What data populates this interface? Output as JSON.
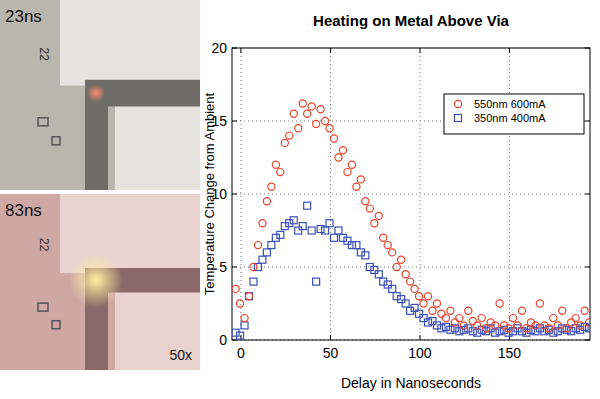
{
  "chart_data": {
    "type": "scatter",
    "title": "Heating on Metal Above Via",
    "x_label": "Delay in Nanoseconds",
    "y_label": "Temperature Change from Ambient",
    "x": [
      -3,
      -0.5,
      2,
      4.5,
      7,
      9.5,
      12,
      14.5,
      17,
      19.5,
      22,
      24.5,
      27,
      29.5,
      32,
      34.5,
      37,
      39.5,
      42,
      44.5,
      47,
      49.5,
      52,
      54.5,
      57,
      59.5,
      62,
      64.5,
      67,
      69.5,
      72,
      74.5,
      77,
      79.5,
      82,
      84.5,
      87,
      89.5,
      92,
      94.5,
      97,
      99.5,
      102,
      104.5,
      107,
      109.5,
      112,
      114.5,
      117,
      119.5,
      122,
      124.5,
      127,
      129.5,
      132,
      134.5,
      137,
      139.5,
      142,
      144.5,
      147,
      149.5,
      152,
      154.5,
      157,
      159.5,
      162,
      164.5,
      167,
      169.5,
      172,
      174.5,
      177,
      179.5,
      182,
      184.5,
      187,
      189.5,
      192,
      194.5
    ],
    "series": [
      {
        "name": "550nm 600mA",
        "color": "#e8442f",
        "marker": "circle",
        "values": [
          3.5,
          2.5,
          1.5,
          3,
          5,
          6.5,
          8,
          9.5,
          10.5,
          12,
          11.5,
          13.5,
          14,
          15.5,
          14.5,
          16.2,
          15.5,
          16,
          14.8,
          15.8,
          15,
          14.5,
          13.8,
          12.5,
          13,
          11.5,
          12,
          10.5,
          11,
          9.5,
          9,
          8,
          8.5,
          7,
          6.5,
          6,
          5,
          5.5,
          4.5,
          4,
          3.5,
          3,
          2.5,
          3,
          2,
          2.5,
          1.8,
          1.5,
          2,
          1.2,
          1.5,
          1,
          2,
          1.3,
          1,
          1.5,
          0.8,
          1.2,
          1,
          2.5,
          1,
          0.8,
          1.5,
          1,
          2,
          0.8,
          1.2,
          1,
          2.5,
          1,
          0.8,
          1.5,
          1,
          2,
          0.8,
          1.2,
          1.5,
          1,
          2,
          1.2
        ]
      },
      {
        "name": "350nm 400mA",
        "color": "#3b4fb8",
        "marker": "square",
        "values": [
          0.5,
          0.3,
          1,
          3,
          4,
          5,
          5.5,
          6,
          6.5,
          7,
          7.2,
          7.8,
          8,
          8.2,
          7.5,
          7.8,
          9.2,
          7.5,
          4,
          7.6,
          7.5,
          8,
          7,
          7.5,
          7,
          6.8,
          6.5,
          6.5,
          6,
          5.8,
          5,
          4.8,
          4.5,
          4,
          3.8,
          3.5,
          3,
          2.8,
          2.5,
          2,
          2.2,
          1.8,
          1.5,
          1.2,
          1.3,
          1,
          0.8,
          0.9,
          0.7,
          0.8,
          0.6,
          0.7,
          0.8,
          0.6,
          0.5,
          0.7,
          0.6,
          0.8,
          0.5,
          0.6,
          0.7,
          0.5,
          0.6,
          0.8,
          0.6,
          0.5,
          0.7,
          0.6,
          0.8,
          0.6,
          0.7,
          0.5,
          0.6,
          0.8,
          0.7,
          0.6,
          0.8,
          0.7,
          0.9,
          0.8
        ]
      }
    ],
    "xlim": [
      -5,
      195
    ],
    "xticks": [
      0,
      50,
      100,
      150
    ],
    "ylim": [
      0,
      20
    ],
    "yticks": [
      0,
      5,
      10,
      15,
      20
    ],
    "grid": true,
    "legend": "upper right"
  },
  "photos": [
    {
      "label": "23ns",
      "marking": "22"
    },
    {
      "label": "83ns",
      "marking": "22",
      "magnification": "50x"
    }
  ]
}
